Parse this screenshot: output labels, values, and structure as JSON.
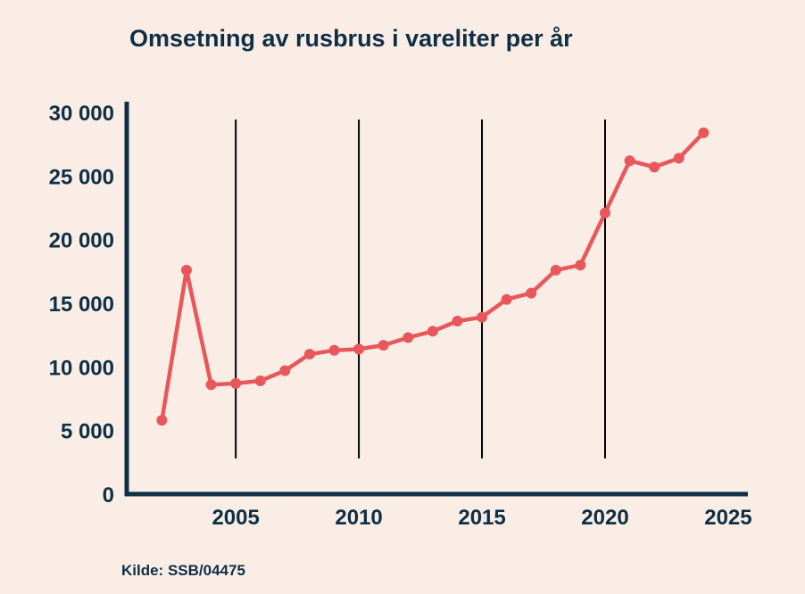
{
  "chart_data": {
    "type": "line",
    "title": "Omsetning av rusbrus i vareliter per år",
    "source": "Kilde: SSB/04475",
    "xlabel": "",
    "ylabel": "",
    "xlim": [
      2000.5,
      2025.8
    ],
    "ylim": [
      0,
      30000
    ],
    "x_ticks": [
      2005,
      2010,
      2015,
      2020,
      2025
    ],
    "x_tick_labels": [
      "2005",
      "2010",
      "2015",
      "2020",
      "2025"
    ],
    "y_ticks": [
      0,
      5000,
      10000,
      15000,
      20000,
      25000,
      30000
    ],
    "y_tick_labels": [
      "0",
      "5 000",
      "10 000",
      "15 000",
      "20 000",
      "25 000",
      "30 000"
    ],
    "vertical_reference_lines": [
      2005,
      2010,
      2015,
      2020
    ],
    "grid": false,
    "line_color": "#e8585a",
    "axis_color": "#0f2f45",
    "series": [
      {
        "x": [
          2002,
          2003,
          2004,
          2005,
          2006,
          2007,
          2008,
          2009,
          2010,
          2011,
          2012,
          2013,
          2014,
          2015,
          2016,
          2017,
          2018,
          2019,
          2020,
          2021,
          2022,
          2023,
          2024
        ],
        "values": [
          5800,
          17600,
          8600,
          8700,
          8900,
          9700,
          11000,
          11300,
          11400,
          11700,
          12300,
          12800,
          13600,
          13900,
          15300,
          15800,
          17600,
          18000,
          22100,
          26200,
          25700,
          26400,
          28400
        ]
      }
    ]
  }
}
